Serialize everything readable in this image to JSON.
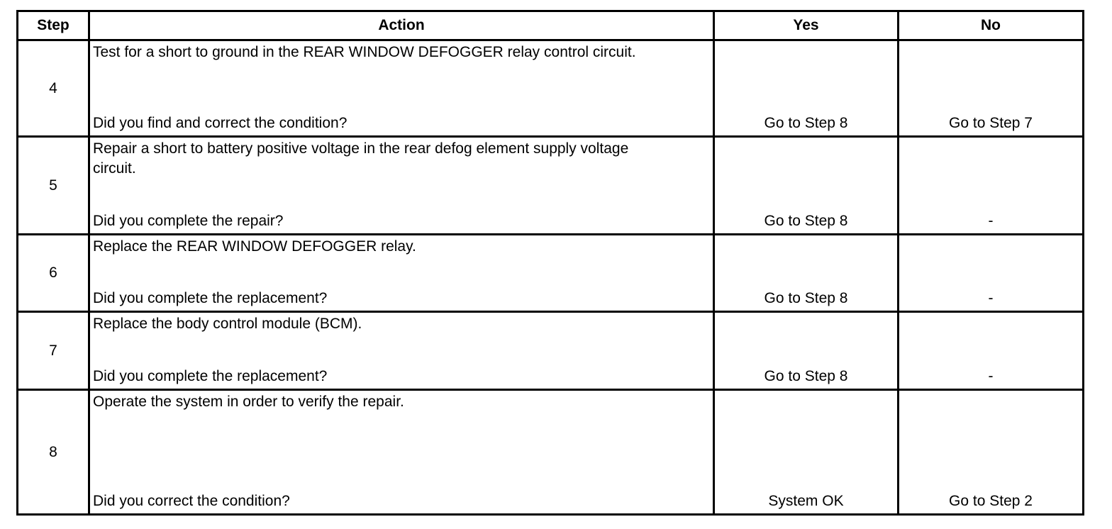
{
  "headers": {
    "step": "Step",
    "action": "Action",
    "yes": "Yes",
    "no": "No"
  },
  "rows": [
    {
      "step": "4",
      "action": "Test for a short to ground in the REAR WINDOW DEFOGGER relay control circuit.",
      "question": "Did you find and correct the condition?",
      "yes": "Go to Step 8",
      "no": "Go to Step 7"
    },
    {
      "step": "5",
      "action": "Repair a short to battery positive voltage in the rear defog element supply voltage circuit.",
      "question": "Did you complete the repair?",
      "yes": "Go to Step 8",
      "no": "-"
    },
    {
      "step": "6",
      "action": "Replace the REAR WINDOW DEFOGGER relay.",
      "question": "Did you complete the replacement?",
      "yes": "Go to Step 8",
      "no": "-"
    },
    {
      "step": "7",
      "action": "Replace the body control module (BCM).",
      "question": "Did you complete the replacement?",
      "yes": "Go to Step 8",
      "no": "-"
    },
    {
      "step": "8",
      "action": "Operate the system in order to verify the repair.",
      "question": "Did you correct the condition?",
      "yes": "System OK",
      "no": "Go to Step 2"
    }
  ]
}
